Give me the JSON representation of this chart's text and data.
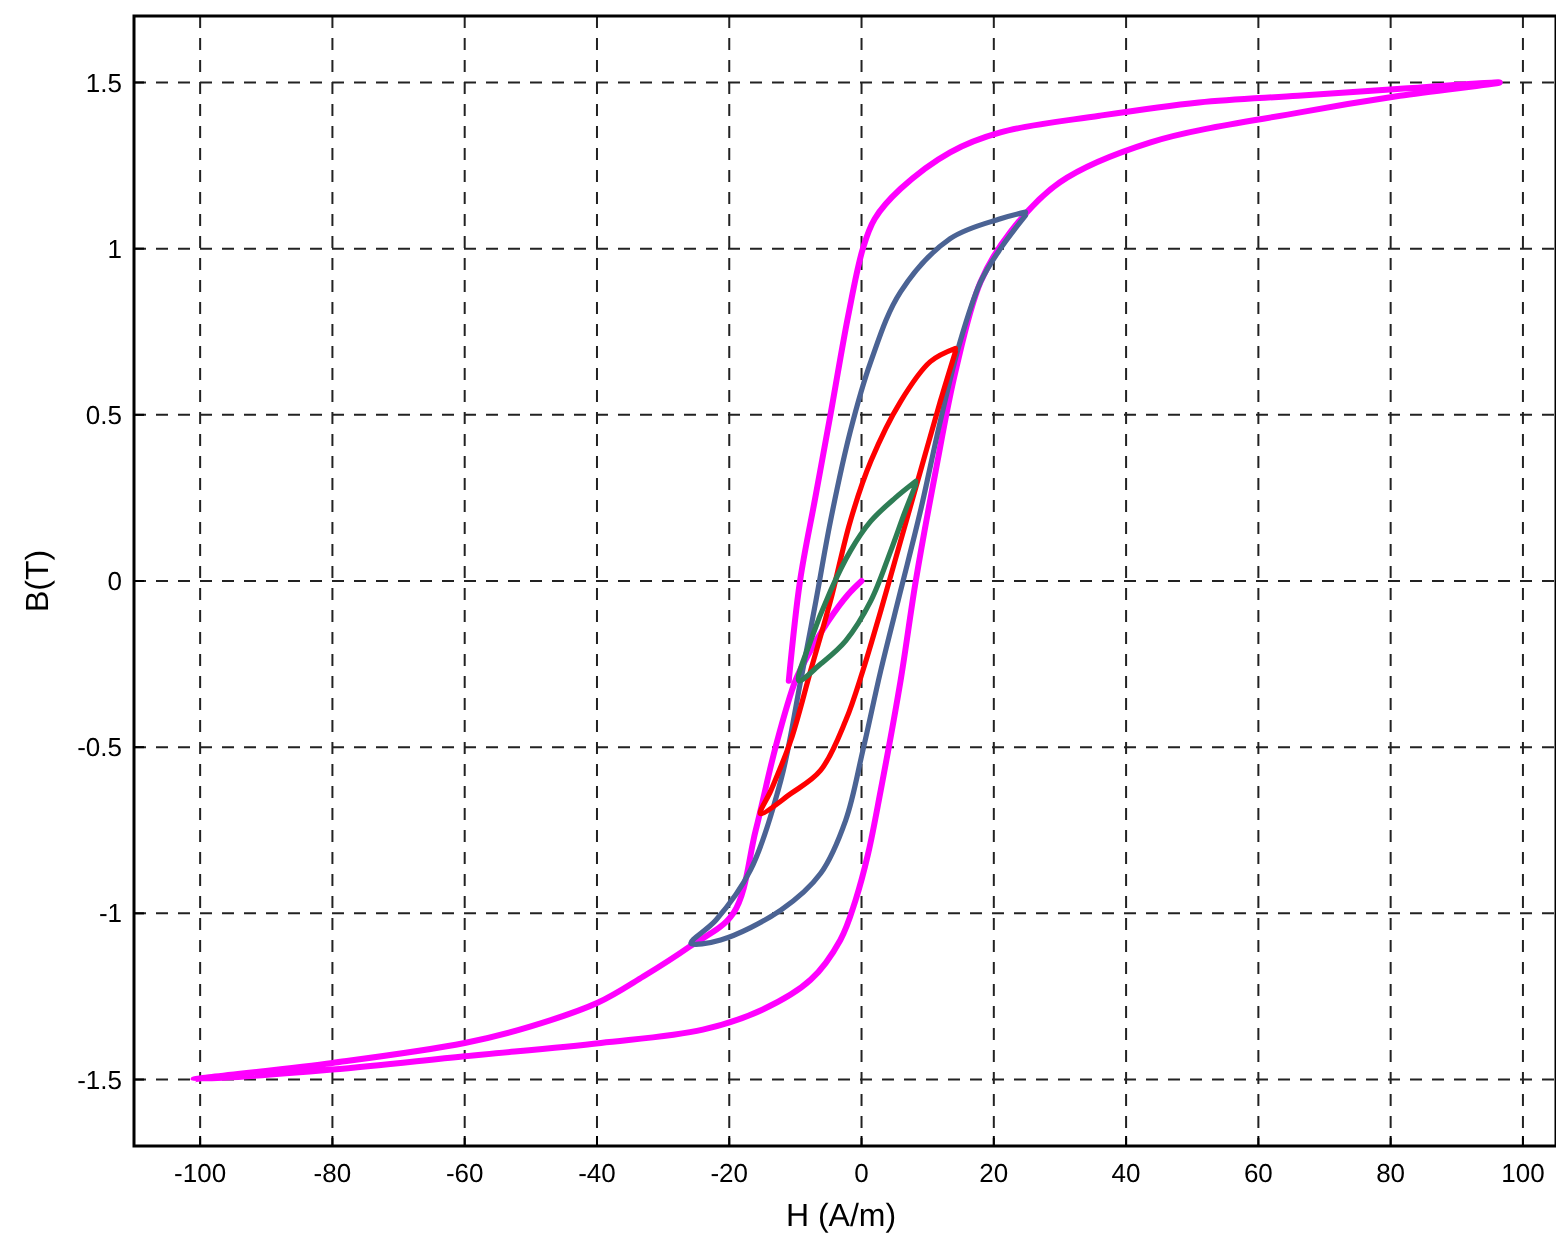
{
  "chart_data": {
    "type": "line",
    "xlabel": "H (A/m)",
    "ylabel": "B(T)",
    "xlim": [
      -110,
      105
    ],
    "ylim": [
      -1.7,
      1.7
    ],
    "xticks": [
      -100,
      -80,
      -60,
      -40,
      -20,
      0,
      20,
      40,
      60,
      80,
      100
    ],
    "yticks": [
      -1.5,
      -1,
      -0.5,
      0,
      0.5,
      1,
      1.5
    ],
    "grid": true,
    "marker": "none",
    "line_style": "solid",
    "series": [
      {
        "color": "#ff00ff",
        "x": [
          0,
          -2,
          -5,
          -8,
          -10,
          -13,
          -16,
          -19.4,
          -26,
          -33,
          -40,
          -50,
          -60,
          -80,
          -101,
          -80,
          -60,
          -39.4,
          -24,
          -15,
          -7.7,
          -3.2,
          -0.9,
          1,
          2.9,
          5.9,
          8.2,
          11.2,
          14.2,
          18,
          22.5,
          30,
          43.7,
          66.3,
          81.4,
          96.5,
          81,
          66,
          51,
          36,
          21,
          13.4,
          5.9,
          2,
          0.2,
          -2,
          -4.7,
          -7,
          -9.3,
          -11
        ],
        "values": [
          0,
          -0.04,
          -0.12,
          -0.22,
          -0.3,
          -0.5,
          -0.75,
          -1,
          -1.1,
          -1.19,
          -1.27,
          -1.34,
          -1.39,
          -1.45,
          -1.5,
          -1.47,
          -1.43,
          -1.39,
          -1.35,
          -1.29,
          -1.2,
          -1.08,
          -0.96,
          -0.82,
          -0.63,
          -0.3,
          0,
          0.33,
          0.63,
          0.9,
          1.05,
          1.2,
          1.32,
          1.41,
          1.46,
          1.5,
          1.48,
          1.46,
          1.44,
          1.4,
          1.35,
          1.29,
          1.18,
          1.09,
          1,
          0.8,
          0.5,
          0.25,
          0,
          -0.3
        ]
      },
      {
        "color": "#4b6394",
        "x": [
          24.8,
          21,
          13.4,
          5.9,
          1.4,
          -1.7,
          -4.7,
          -6.9,
          -9.2,
          -12.2,
          -16.8,
          -22,
          -25.8,
          -21.3,
          -12.2,
          -6.2,
          -2.4,
          0.2,
          2.9,
          5.9,
          8.9,
          11.9,
          14.9,
          18,
          21,
          24.8
        ],
        "values": [
          1.11,
          1.09,
          1.03,
          0.87,
          0.66,
          0.45,
          0.18,
          -0.06,
          -0.3,
          -0.6,
          -0.87,
          -1.02,
          -1.09,
          -1.08,
          -0.99,
          -0.88,
          -0.72,
          -0.51,
          -0.27,
          -0.03,
          0.21,
          0.48,
          0.72,
          0.9,
          1,
          1.1
        ]
      },
      {
        "color": "#ff0000",
        "x": [
          14.2,
          10.4,
          5.9,
          1.4,
          -1.7,
          -4.7,
          -7.7,
          -10.7,
          -13.7,
          -15.3,
          -10.7,
          -6.2,
          -2.4,
          0.2,
          2.9,
          5.9,
          8.9,
          11.9,
          14.2
        ],
        "values": [
          0.7,
          0.66,
          0.54,
          0.36,
          0.18,
          -0.06,
          -0.27,
          -0.48,
          -0.63,
          -0.7,
          -0.64,
          -0.57,
          -0.42,
          -0.27,
          -0.09,
          0.12,
          0.33,
          0.54,
          0.69
        ]
      },
      {
        "color": "#2e7d55",
        "x": [
          8.2,
          5.1,
          1.4,
          -1.7,
          -4.7,
          -7.7,
          -9.5,
          -6.2,
          -2.4,
          1.4,
          4.4,
          6.6,
          8.2
        ],
        "values": [
          0.3,
          0.25,
          0.18,
          0.09,
          -0.03,
          -0.18,
          -0.3,
          -0.25,
          -0.18,
          -0.06,
          0.09,
          0.21,
          0.29
        ]
      }
    ]
  }
}
